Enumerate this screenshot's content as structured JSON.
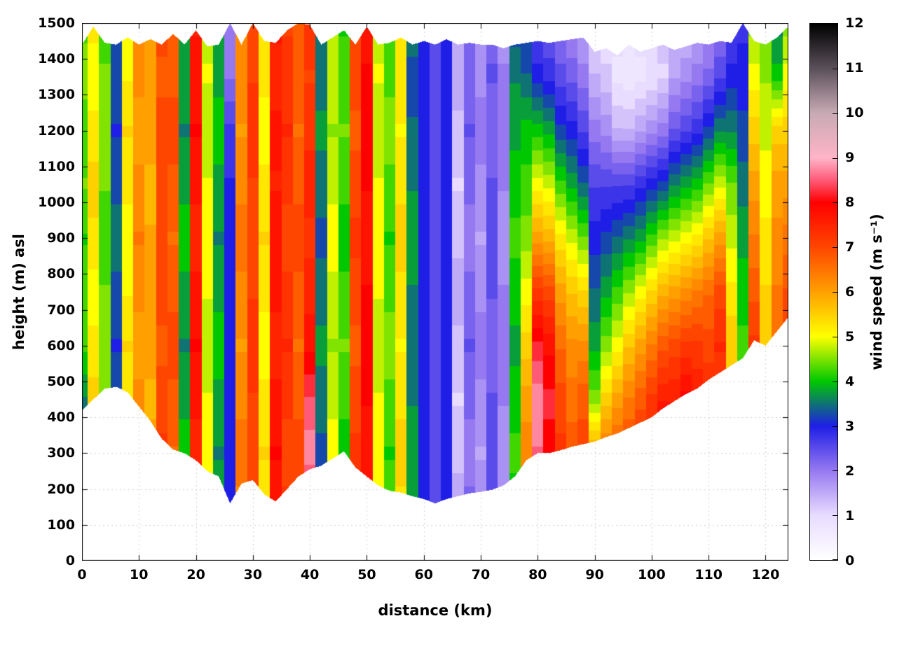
{
  "figure": {
    "title": "",
    "xlabel": "distance (km)",
    "ylabel": "height (m) asl",
    "colorbar_label": "wind speed (m s⁻¹)",
    "background_color": "#ffffff",
    "grid_color": "#d0d0d0",
    "border_color": "#000000"
  },
  "chart_data": {
    "type": "heatmap",
    "title": "",
    "xlabel": "distance (km)",
    "ylabel": "height (m) asl",
    "x_range": [
      0,
      124
    ],
    "y_range": [
      0,
      1500
    ],
    "x_ticks": [
      0,
      10,
      20,
      30,
      40,
      50,
      60,
      70,
      80,
      90,
      100,
      110,
      120
    ],
    "y_ticks": [
      0,
      100,
      200,
      300,
      400,
      500,
      600,
      700,
      800,
      900,
      1000,
      1100,
      1200,
      1300,
      1400,
      1500
    ],
    "grid_on": true,
    "colorbar": {
      "label": "wind speed (m s⁻¹)",
      "range": [
        0,
        12
      ],
      "ticks": [
        0,
        1,
        2,
        3,
        4,
        5,
        6,
        7,
        8,
        9,
        10,
        11,
        12
      ],
      "position": "right",
      "palette_stops": [
        [
          0,
          "#ffffff"
        ],
        [
          1,
          "#e8dcff"
        ],
        [
          2,
          "#9678f0"
        ],
        [
          3,
          "#1e1ee6"
        ],
        [
          4,
          "#00c800"
        ],
        [
          5,
          "#ffff00"
        ],
        [
          6,
          "#ffa000"
        ],
        [
          7,
          "#ff4600"
        ],
        [
          8,
          "#ff0000"
        ],
        [
          8.5,
          "#ff5a78"
        ],
        [
          9,
          "#ffb4c8"
        ],
        [
          10,
          "#c8aab4"
        ],
        [
          11,
          "#5a505a"
        ],
        [
          12,
          "#000000"
        ]
      ]
    },
    "grid": {
      "x_start_km": 0,
      "x_step_km": 2,
      "y_levels": [
        150,
        300,
        450,
        600,
        750,
        900,
        1050,
        1200,
        1350,
        1500
      ],
      "columns": [
        [
          3.5,
          3.5,
          3.6,
          4.2,
          4.3,
          4.1,
          4.4,
          4.2,
          4.5,
          4.3
        ],
        [
          5.2,
          5.3,
          5.5,
          5.2,
          5.0,
          5.3,
          5.5,
          5.2,
          5.0,
          5.2
        ],
        [
          4.4,
          4.2,
          4.4,
          4.6,
          4.4,
          4.2,
          4.4,
          4.6,
          4.4,
          4.3
        ],
        [
          3.3,
          3.5,
          3.3,
          3.1,
          3.3,
          3.5,
          3.3,
          3.1,
          3.3,
          3.4
        ],
        [
          5.1,
          5.0,
          5.2,
          5.4,
          5.1,
          5.0,
          5.2,
          5.4,
          5.1,
          5.0
        ],
        [
          6.2,
          6.4,
          6.2,
          6.0,
          6.2,
          6.4,
          6.2,
          6.0,
          6.2,
          6.1
        ],
        [
          5.9,
          6.0,
          5.8,
          6.0,
          6.1,
          5.9,
          5.8,
          6.0,
          6.1,
          5.9
        ],
        [
          7.0,
          7.2,
          7.0,
          6.8,
          7.0,
          7.1,
          6.9,
          7.0,
          6.8,
          7.0
        ],
        [
          6.8,
          6.6,
          6.8,
          7.0,
          6.8,
          6.6,
          6.8,
          7.0,
          6.8,
          6.7
        ],
        [
          3.8,
          4.0,
          3.8,
          3.6,
          3.8,
          4.0,
          3.8,
          3.6,
          3.8,
          3.9
        ],
        [
          7.7,
          7.5,
          7.7,
          7.9,
          7.7,
          7.5,
          7.7,
          7.9,
          7.7,
          7.6
        ],
        [
          4.9,
          5.1,
          4.9,
          4.7,
          4.9,
          5.1,
          4.9,
          4.7,
          4.9,
          4.8
        ],
        [
          3.8,
          3.6,
          3.8,
          4.0,
          3.8,
          3.6,
          3.8,
          4.0,
          3.8,
          3.7
        ],
        [
          3.0,
          3.0,
          3.1,
          2.9,
          3.0,
          3.0,
          2.9,
          2.7,
          2.1,
          2.0
        ],
        [
          6.3,
          6.5,
          6.3,
          6.1,
          6.3,
          6.5,
          6.3,
          6.1,
          6.3,
          6.2
        ],
        [
          7.1,
          6.9,
          7.1,
          7.3,
          7.1,
          6.9,
          7.1,
          7.3,
          7.1,
          7.0
        ],
        [
          5.2,
          5.4,
          5.2,
          5.0,
          5.2,
          5.4,
          5.2,
          5.0,
          5.2,
          5.1
        ],
        [
          7.7,
          7.9,
          7.7,
          7.5,
          7.7,
          7.8,
          7.6,
          7.7,
          7.5,
          7.7
        ],
        [
          7.2,
          7.0,
          7.2,
          7.4,
          7.2,
          7.0,
          7.2,
          7.4,
          7.2,
          7.1
        ],
        [
          6.8,
          7.0,
          6.8,
          6.6,
          6.8,
          7.0,
          6.8,
          6.6,
          6.8,
          6.7
        ],
        [
          8.0,
          8.8,
          8.4,
          7.8,
          7.5,
          7.3,
          7.5,
          7.3,
          7.1,
          7.3
        ],
        [
          3.5,
          3.3,
          3.5,
          3.7,
          3.5,
          3.3,
          3.5,
          3.7,
          3.5,
          3.4
        ],
        [
          4.8,
          5.0,
          4.8,
          4.6,
          4.8,
          5.0,
          4.8,
          4.6,
          4.8,
          4.7
        ],
        [
          4.2,
          4.0,
          4.2,
          4.4,
          4.2,
          4.0,
          4.2,
          4.4,
          4.2,
          4.1
        ],
        [
          7.0,
          7.2,
          7.0,
          6.8,
          7.0,
          7.2,
          7.0,
          6.8,
          7.0,
          6.9
        ],
        [
          7.9,
          7.7,
          7.9,
          8.1,
          7.9,
          7.7,
          7.9,
          8.1,
          7.9,
          7.8
        ],
        [
          4.9,
          5.1,
          4.9,
          4.7,
          4.9,
          5.1,
          4.9,
          4.7,
          4.9,
          4.8
        ],
        [
          4.3,
          4.1,
          4.3,
          4.5,
          4.3,
          4.1,
          4.3,
          4.5,
          4.3,
          4.2
        ],
        [
          5.3,
          5.5,
          5.3,
          5.1,
          5.3,
          5.5,
          5.3,
          5.1,
          5.3,
          5.2
        ],
        [
          3.6,
          3.8,
          3.6,
          3.4,
          3.6,
          3.8,
          3.6,
          3.4,
          3.3,
          3.5
        ],
        [
          3.0,
          2.9,
          3.0,
          3.1,
          3.0,
          2.9,
          3.0,
          3.1,
          3.0,
          3.0
        ],
        [
          2.5,
          2.6,
          2.5,
          2.4,
          2.5,
          2.6,
          2.5,
          2.4,
          2.5,
          2.5
        ],
        [
          3.0,
          3.1,
          3.0,
          2.9,
          3.0,
          3.1,
          3.0,
          2.9,
          3.0,
          3.0
        ],
        [
          1.5,
          1.3,
          1.1,
          1.3,
          1.5,
          1.3,
          1.1,
          1.3,
          1.5,
          1.4
        ],
        [
          2.2,
          2.0,
          2.2,
          2.4,
          2.2,
          2.0,
          2.2,
          2.4,
          2.2,
          2.1
        ],
        [
          1.8,
          1.6,
          1.8,
          2.0,
          1.8,
          1.6,
          1.8,
          2.0,
          1.8,
          1.7
        ],
        [
          2.4,
          2.6,
          2.4,
          2.2,
          2.4,
          2.6,
          2.4,
          2.2,
          2.4,
          2.3
        ],
        [
          1.9,
          1.7,
          1.9,
          2.1,
          1.9,
          1.7,
          1.9,
          2.1,
          1.9,
          1.8
        ],
        [
          4.0,
          4.2,
          4.0,
          3.8,
          4.0,
          4.2,
          4.0,
          3.8,
          3.6,
          3.2
        ],
        [
          6.0,
          6.3,
          6.0,
          5.5,
          5.0,
          4.5,
          4.2,
          4.0,
          3.4,
          3.0
        ],
        [
          7.8,
          8.6,
          8.8,
          8.2,
          7.2,
          6.0,
          5.0,
          4.0,
          3.0,
          2.5
        ],
        [
          7.8,
          8.0,
          8.2,
          7.8,
          7.0,
          5.8,
          4.8,
          3.8,
          2.8,
          2.3
        ],
        [
          7.0,
          7.2,
          7.0,
          6.6,
          6.0,
          5.2,
          4.2,
          3.2,
          2.5,
          2.0
        ],
        [
          6.5,
          6.8,
          6.5,
          6.2,
          5.6,
          4.8,
          3.8,
          3.0,
          2.3,
          1.8
        ],
        [
          6.8,
          7.0,
          6.8,
          6.2,
          5.4,
          4.4,
          3.4,
          2.6,
          2.0,
          1.5
        ],
        [
          6.5,
          6.0,
          4.5,
          3.8,
          3.4,
          3.0,
          2.6,
          2.0,
          1.4,
          1.0
        ],
        [
          7.0,
          6.5,
          5.5,
          4.5,
          3.8,
          3.2,
          2.6,
          1.8,
          1.2,
          0.9
        ],
        [
          7.2,
          6.8,
          6.0,
          5.0,
          4.2,
          3.4,
          2.6,
          1.4,
          0.8,
          1.0
        ],
        [
          7.4,
          7.0,
          6.4,
          5.6,
          4.6,
          3.6,
          2.6,
          1.4,
          0.7,
          0.9
        ],
        [
          7.6,
          7.2,
          6.8,
          6.0,
          5.0,
          3.8,
          2.8,
          1.6,
          0.8,
          1.0
        ],
        [
          7.8,
          7.6,
          7.2,
          6.4,
          5.4,
          4.2,
          3.0,
          1.8,
          0.9,
          1.1
        ],
        [
          8.0,
          8.4,
          7.6,
          6.8,
          5.8,
          4.6,
          3.2,
          2.0,
          1.1,
          1.2
        ],
        [
          7.8,
          8.0,
          7.6,
          7.0,
          6.0,
          4.8,
          3.6,
          2.4,
          1.6,
          1.2
        ],
        [
          8.0,
          8.6,
          8.0,
          7.2,
          6.2,
          5.0,
          3.8,
          2.6,
          1.8,
          1.3
        ],
        [
          7.6,
          7.8,
          7.6,
          7.2,
          6.4,
          5.2,
          4.0,
          2.8,
          2.0,
          1.5
        ],
        [
          7.0,
          7.2,
          7.4,
          7.0,
          6.6,
          5.6,
          4.4,
          3.2,
          2.2,
          1.7
        ],
        [
          6.8,
          7.0,
          7.2,
          7.4,
          7.0,
          6.0,
          4.8,
          3.6,
          2.6,
          2.0
        ],
        [
          5.0,
          5.2,
          5.4,
          5.6,
          5.2,
          4.8,
          4.4,
          3.6,
          3.0,
          2.5
        ],
        [
          3.6,
          3.8,
          4.0,
          4.2,
          4.0,
          3.8,
          3.5,
          3.2,
          3.0,
          2.8
        ],
        [
          6.5,
          6.8,
          7.0,
          7.2,
          6.8,
          6.4,
          6.0,
          5.5,
          5.0,
          4.5
        ],
        [
          5.0,
          5.2,
          5.4,
          5.6,
          5.4,
          5.2,
          5.0,
          4.8,
          4.6,
          4.4
        ],
        [
          6.0,
          6.2,
          6.4,
          6.6,
          6.4,
          6.2,
          6.0,
          5.5,
          4.0,
          3.5
        ],
        [
          6.5,
          6.7,
          6.9,
          7.1,
          6.9,
          6.5,
          6.0,
          5.5,
          5.0,
          4.5
        ]
      ]
    },
    "terrain_height_m": [
      420,
      450,
      480,
      485,
      470,
      430,
      390,
      340,
      310,
      300,
      280,
      250,
      235,
      160,
      215,
      225,
      185,
      165,
      200,
      235,
      255,
      265,
      285,
      305,
      260,
      235,
      210,
      195,
      190,
      180,
      172,
      160,
      172,
      180,
      188,
      192,
      198,
      210,
      235,
      280,
      300,
      300,
      308,
      318,
      325,
      332,
      345,
      355,
      370,
      385,
      400,
      425,
      445,
      465,
      480,
      505,
      525,
      545,
      565,
      615,
      600,
      640,
      680
    ],
    "top_boundary_m": [
      1440,
      1490,
      1445,
      1440,
      1460,
      1440,
      1455,
      1440,
      1470,
      1440,
      1480,
      1435,
      1440,
      1500,
      1440,
      1500,
      1450,
      1445,
      1480,
      1500,
      1495,
      1440,
      1460,
      1480,
      1440,
      1490,
      1440,
      1445,
      1460,
      1440,
      1450,
      1440,
      1455,
      1440,
      1445,
      1440,
      1440,
      1430,
      1440,
      1445,
      1450,
      1445,
      1450,
      1455,
      1460,
      1420,
      1430,
      1410,
      1440,
      1420,
      1430,
      1440,
      1425,
      1435,
      1445,
      1440,
      1450,
      1445,
      1500,
      1450,
      1440,
      1460,
      1490
    ]
  }
}
